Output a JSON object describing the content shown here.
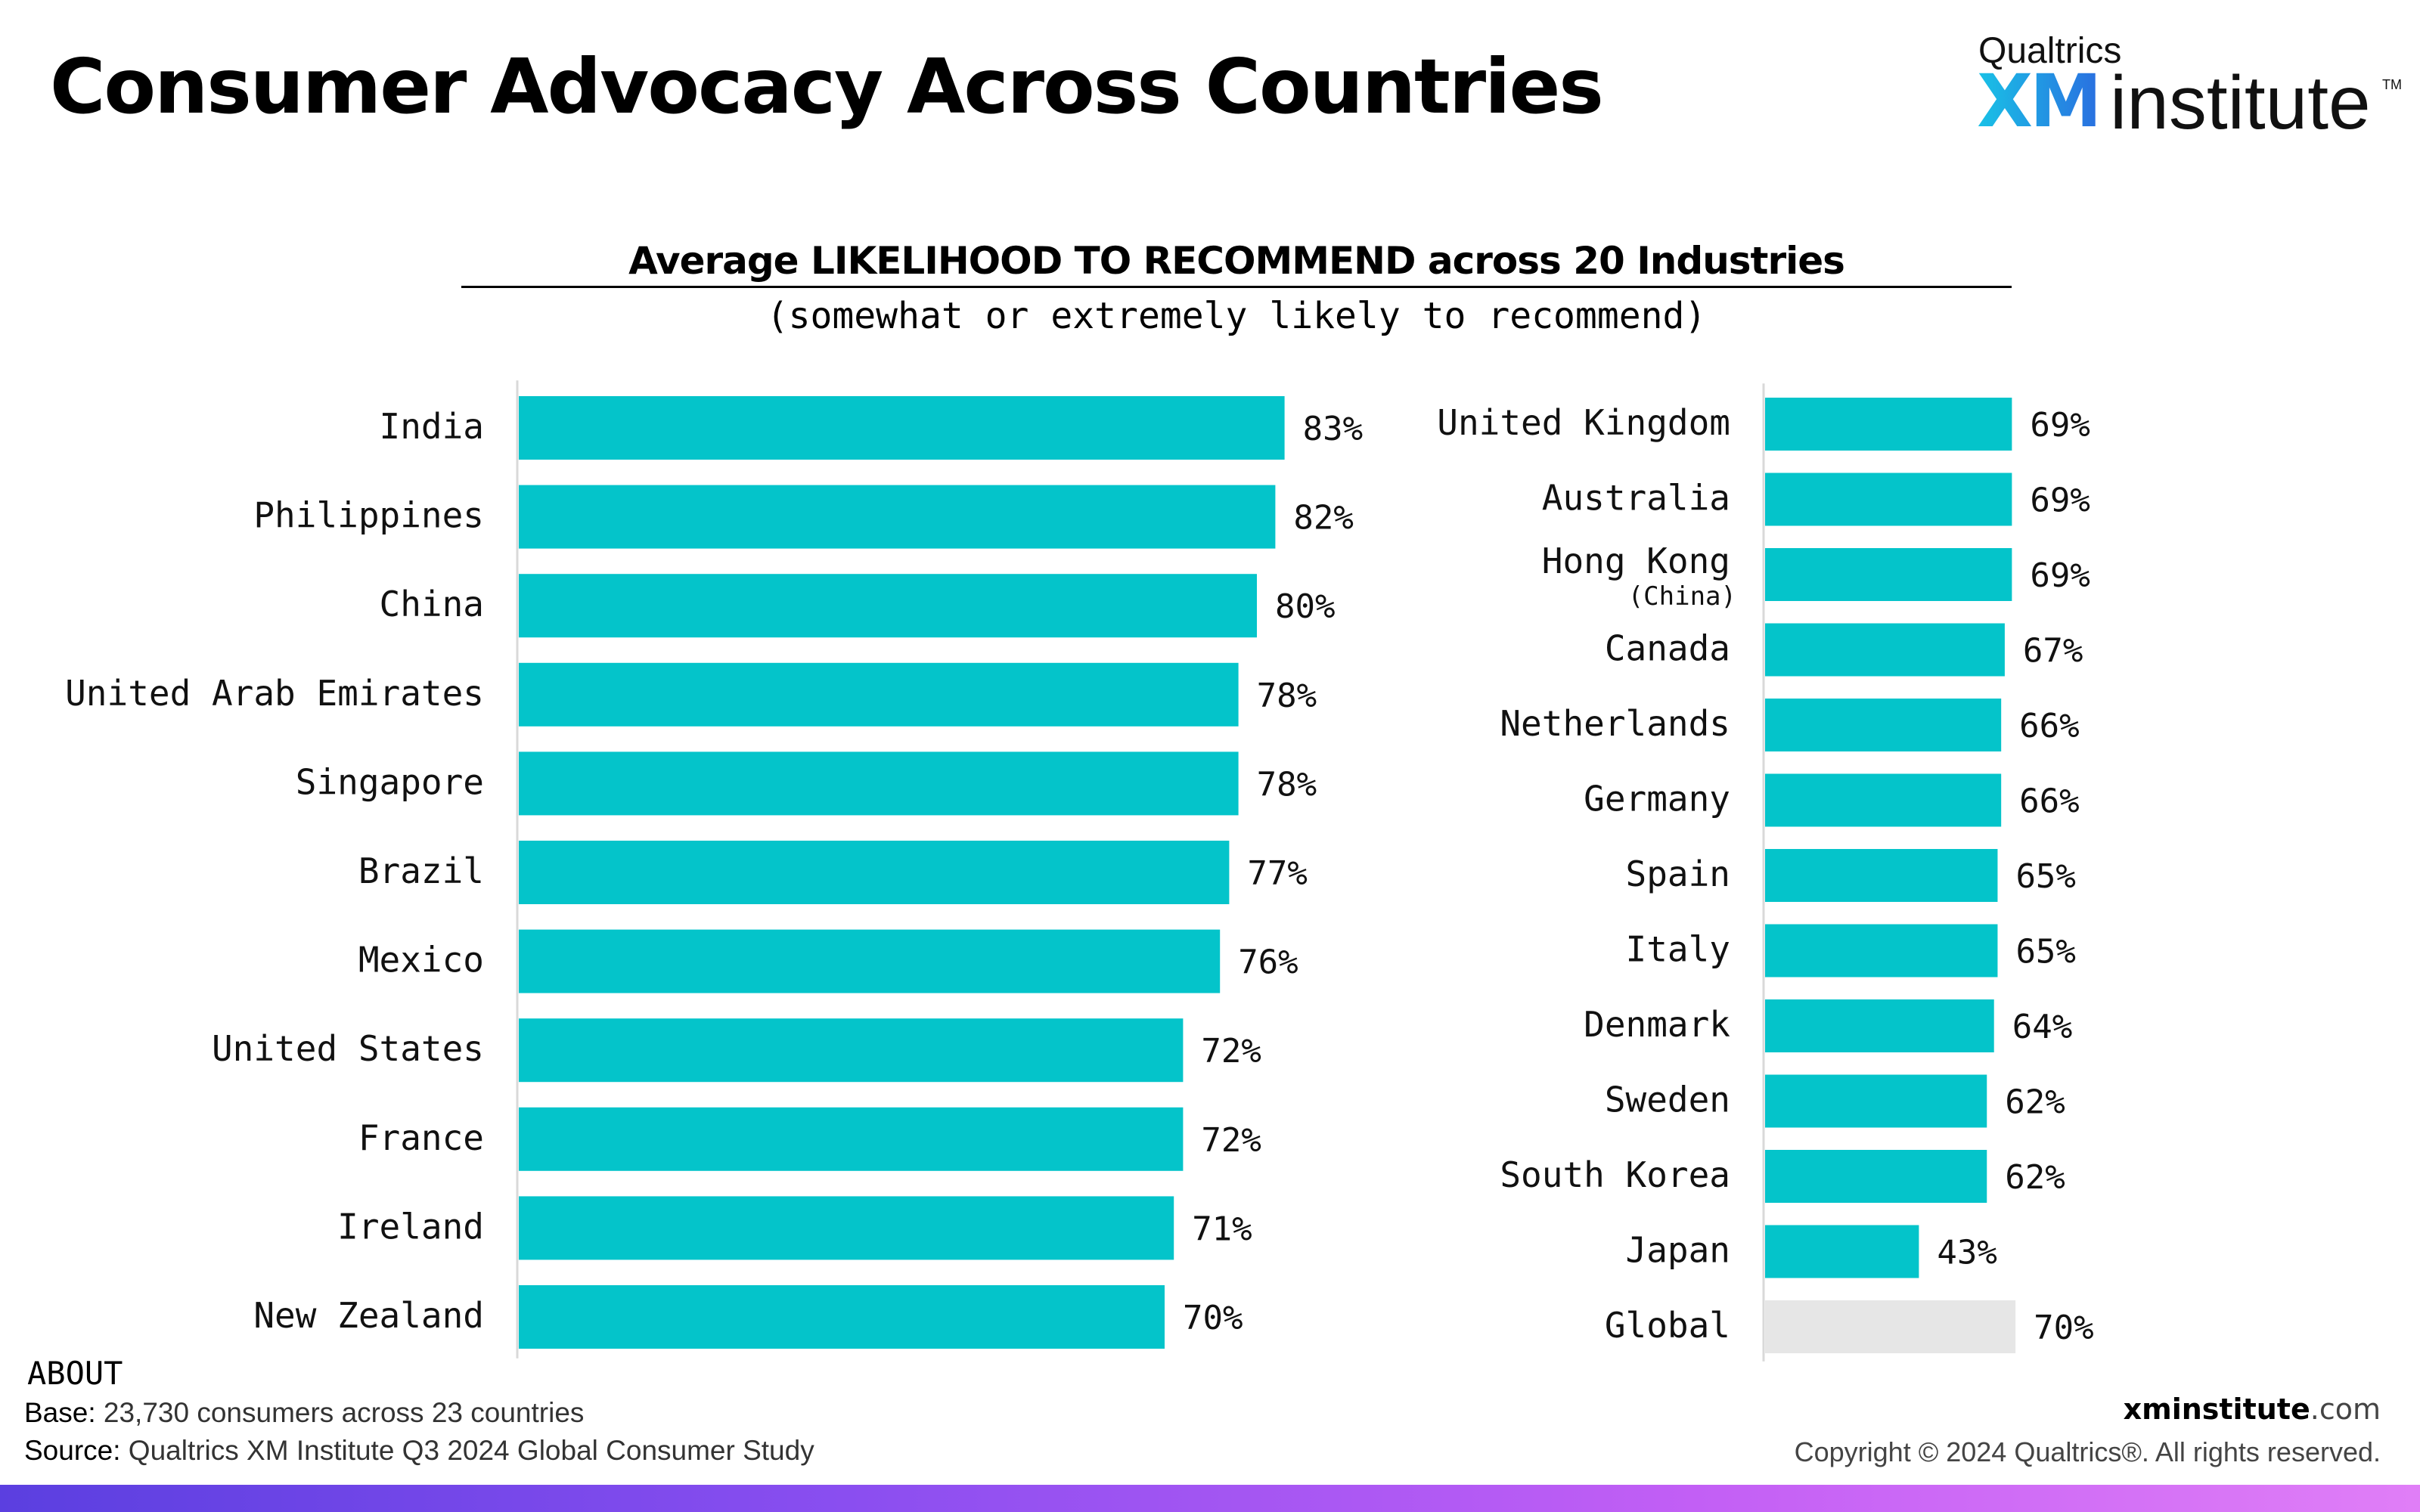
{
  "page": {
    "title": "Consumer Advocacy Across Countries"
  },
  "logo": {
    "brand": "Qualtrics",
    "xm": "XM",
    "product": "institute",
    "tm": "TM"
  },
  "chart_data": {
    "type": "bar",
    "orientation": "horizontal",
    "title": "Average LIKELIHOOD TO RECOMMEND across 20 Industries",
    "subtitle": "(somewhat or extremely likely to recommend)",
    "xlabel": "",
    "ylabel": "",
    "xlim": [
      0,
      100
    ],
    "grid": false,
    "unit_suffix": "%",
    "bar_color": "#04c4ca",
    "benchmark_color": "#e6e6e6",
    "panels": [
      {
        "categories": [
          "India",
          "Philippines",
          "China",
          "United Arab Emirates",
          "Singapore",
          "Brazil",
          "Mexico",
          "United States",
          "France",
          "Ireland",
          "New Zealand"
        ],
        "sublabels": [
          "",
          "",
          "",
          "",
          "",
          "",
          "",
          "",
          "",
          "",
          ""
        ],
        "values": [
          83,
          82,
          80,
          78,
          78,
          77,
          76,
          72,
          72,
          71,
          70
        ],
        "value_labels": [
          "83%",
          "82%",
          "80%",
          "78%",
          "78%",
          "77%",
          "76%",
          "72%",
          "72%",
          "71%",
          "70%"
        ],
        "benchmark": [
          false,
          false,
          false,
          false,
          false,
          false,
          false,
          false,
          false,
          false,
          false
        ]
      },
      {
        "categories": [
          "United Kingdom",
          "Australia",
          "Hong Kong",
          "Canada",
          "Netherlands",
          "Germany",
          "Spain",
          "Italy",
          "Denmark",
          "Sweden",
          "South Korea",
          "Japan",
          "Global"
        ],
        "sublabels": [
          "",
          "",
          "(China)",
          "",
          "",
          "",
          "",
          "",
          "",
          "",
          "",
          "",
          ""
        ],
        "values": [
          69,
          69,
          69,
          67,
          66,
          66,
          65,
          65,
          64,
          62,
          62,
          43,
          70
        ],
        "value_labels": [
          "69%",
          "69%",
          "69%",
          "67%",
          "66%",
          "66%",
          "65%",
          "65%",
          "64%",
          "62%",
          "62%",
          "43%",
          "70%"
        ],
        "benchmark": [
          false,
          false,
          false,
          false,
          false,
          false,
          false,
          false,
          false,
          false,
          false,
          false,
          true
        ]
      }
    ]
  },
  "footer": {
    "about": "ABOUT",
    "base_label": "Base:",
    "base_text": " 23,730 consumers across 23 countries",
    "source_label": "Source:",
    "source_text": " Qualtrics XM Institute Q3 2024 Global Consumer Study",
    "site_bold": "xminstitute",
    "site_thin": ".com",
    "copyright": "Copyright © 2024 Qualtrics®. All rights reserved."
  }
}
